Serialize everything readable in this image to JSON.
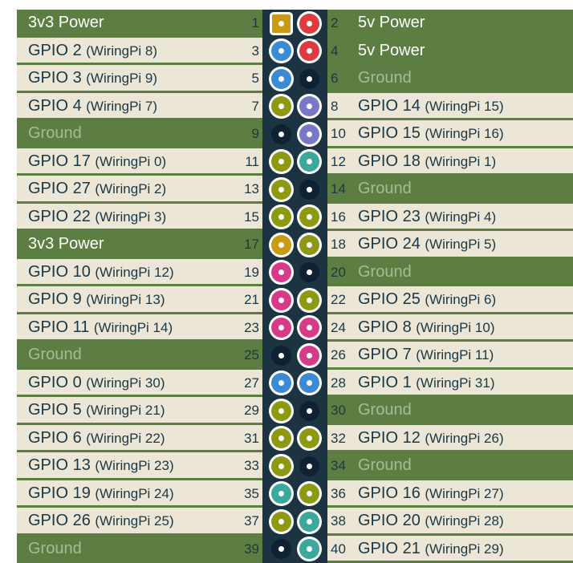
{
  "colors": {
    "power3v3": "#c99a14",
    "power5v": "#e03a3e",
    "ground": "#0f2233",
    "gpio": "#8c9a12",
    "i2c": "#3a8ad6",
    "uart": "#7878c8",
    "spi": "#d83a8a",
    "pcm": "#3aa89a"
  },
  "pins": [
    {
      "num": "1",
      "name": "3v3 Power",
      "sub": "",
      "kind": "power3v3",
      "shape": "square"
    },
    {
      "num": "2",
      "name": "5v Power",
      "sub": "",
      "kind": "power5v"
    },
    {
      "num": "3",
      "name": "GPIO 2",
      "sub": "(WiringPi 8)",
      "kind": "i2c"
    },
    {
      "num": "4",
      "name": "5v Power",
      "sub": "",
      "kind": "power5v"
    },
    {
      "num": "5",
      "name": "GPIO 3",
      "sub": "(WiringPi 9)",
      "kind": "i2c"
    },
    {
      "num": "6",
      "name": "Ground",
      "sub": "",
      "kind": "ground"
    },
    {
      "num": "7",
      "name": "GPIO 4",
      "sub": "(WiringPi 7)",
      "kind": "gpio"
    },
    {
      "num": "8",
      "name": "GPIO 14",
      "sub": "(WiringPi 15)",
      "kind": "uart"
    },
    {
      "num": "9",
      "name": "Ground",
      "sub": "",
      "kind": "ground"
    },
    {
      "num": "10",
      "name": "GPIO 15",
      "sub": "(WiringPi 16)",
      "kind": "uart"
    },
    {
      "num": "11",
      "name": "GPIO 17",
      "sub": "(WiringPi 0)",
      "kind": "gpio"
    },
    {
      "num": "12",
      "name": "GPIO 18",
      "sub": "(WiringPi 1)",
      "kind": "pcm"
    },
    {
      "num": "13",
      "name": "GPIO 27",
      "sub": "(WiringPi 2)",
      "kind": "gpio"
    },
    {
      "num": "14",
      "name": "Ground",
      "sub": "",
      "kind": "ground"
    },
    {
      "num": "15",
      "name": "GPIO 22",
      "sub": "(WiringPi 3)",
      "kind": "gpio"
    },
    {
      "num": "16",
      "name": "GPIO 23",
      "sub": "(WiringPi 4)",
      "kind": "gpio"
    },
    {
      "num": "17",
      "name": "3v3 Power",
      "sub": "",
      "kind": "power3v3"
    },
    {
      "num": "18",
      "name": "GPIO 24",
      "sub": "(WiringPi 5)",
      "kind": "gpio"
    },
    {
      "num": "19",
      "name": "GPIO 10",
      "sub": "(WiringPi 12)",
      "kind": "spi"
    },
    {
      "num": "20",
      "name": "Ground",
      "sub": "",
      "kind": "ground"
    },
    {
      "num": "21",
      "name": "GPIO 9",
      "sub": "(WiringPi 13)",
      "kind": "spi"
    },
    {
      "num": "22",
      "name": "GPIO 25",
      "sub": "(WiringPi 6)",
      "kind": "gpio"
    },
    {
      "num": "23",
      "name": "GPIO 11",
      "sub": "(WiringPi 14)",
      "kind": "spi"
    },
    {
      "num": "24",
      "name": "GPIO 8",
      "sub": "(WiringPi 10)",
      "kind": "spi"
    },
    {
      "num": "25",
      "name": "Ground",
      "sub": "",
      "kind": "ground"
    },
    {
      "num": "26",
      "name": "GPIO 7",
      "sub": "(WiringPi 11)",
      "kind": "spi"
    },
    {
      "num": "27",
      "name": "GPIO 0",
      "sub": "(WiringPi 30)",
      "kind": "i2c"
    },
    {
      "num": "28",
      "name": "GPIO 1",
      "sub": "(WiringPi 31)",
      "kind": "i2c"
    },
    {
      "num": "29",
      "name": "GPIO 5",
      "sub": "(WiringPi 21)",
      "kind": "gpio"
    },
    {
      "num": "30",
      "name": "Ground",
      "sub": "",
      "kind": "ground"
    },
    {
      "num": "31",
      "name": "GPIO 6",
      "sub": "(WiringPi 22)",
      "kind": "gpio"
    },
    {
      "num": "32",
      "name": "GPIO 12",
      "sub": "(WiringPi 26)",
      "kind": "gpio"
    },
    {
      "num": "33",
      "name": "GPIO 13",
      "sub": "(WiringPi 23)",
      "kind": "gpio"
    },
    {
      "num": "34",
      "name": "Ground",
      "sub": "",
      "kind": "ground"
    },
    {
      "num": "35",
      "name": "GPIO 19",
      "sub": "(WiringPi 24)",
      "kind": "pcm"
    },
    {
      "num": "36",
      "name": "GPIO 16",
      "sub": "(WiringPi 27)",
      "kind": "gpio"
    },
    {
      "num": "37",
      "name": "GPIO 26",
      "sub": "(WiringPi 25)",
      "kind": "gpio"
    },
    {
      "num": "38",
      "name": "GPIO 20",
      "sub": "(WiringPi 28)",
      "kind": "pcm"
    },
    {
      "num": "39",
      "name": "Ground",
      "sub": "",
      "kind": "ground"
    },
    {
      "num": "40",
      "name": "GPIO 21",
      "sub": "(WiringPi 29)",
      "kind": "pcm"
    }
  ]
}
